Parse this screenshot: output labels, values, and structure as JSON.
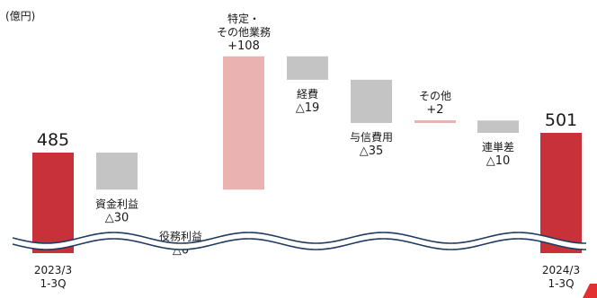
{
  "chart_data": {
    "type": "bar",
    "subtype": "waterfall",
    "unit": "(億円)",
    "ylim": [
      385,
      530
    ],
    "grid": false,
    "legend": "none",
    "colors": {
      "total": "#c8303a",
      "increase": "#ebb2b2",
      "decrease": "#c4c4c4",
      "break_line": "#1f3a5f",
      "corner_accent": "#e23030"
    },
    "bars": [
      {
        "kind": "total",
        "label_lines": [
          "2023/3",
          "1-3Q"
        ],
        "value": 485,
        "value_text": "485"
      },
      {
        "kind": "delta",
        "label_lines": [
          "資金利益"
        ],
        "value_text": "△30",
        "start": 485,
        "end": 455
      },
      {
        "kind": "delta",
        "label_lines": [
          "役務利益"
        ],
        "value_text": "△0",
        "start": 455,
        "end": 455
      },
      {
        "kind": "delta",
        "label_lines": [
          "特定・",
          "その他業務"
        ],
        "value_text": "+108",
        "start": 455,
        "end": 563
      },
      {
        "kind": "delta",
        "label_lines": [
          "経費"
        ],
        "value_text": "△19",
        "start": 563,
        "end": 544
      },
      {
        "kind": "delta",
        "label_lines": [
          "与信費用"
        ],
        "value_text": "△35",
        "start": 544,
        "end": 509
      },
      {
        "kind": "delta",
        "label_lines": [
          "その他"
        ],
        "value_text": "+2",
        "start": 509,
        "end": 511
      },
      {
        "kind": "delta",
        "label_lines": [
          "連単差"
        ],
        "value_text": "△10",
        "start": 511,
        "end": 501
      },
      {
        "kind": "total",
        "label_lines": [
          "2024/3",
          "1-3Q"
        ],
        "value": 501,
        "value_text": "501"
      }
    ]
  }
}
